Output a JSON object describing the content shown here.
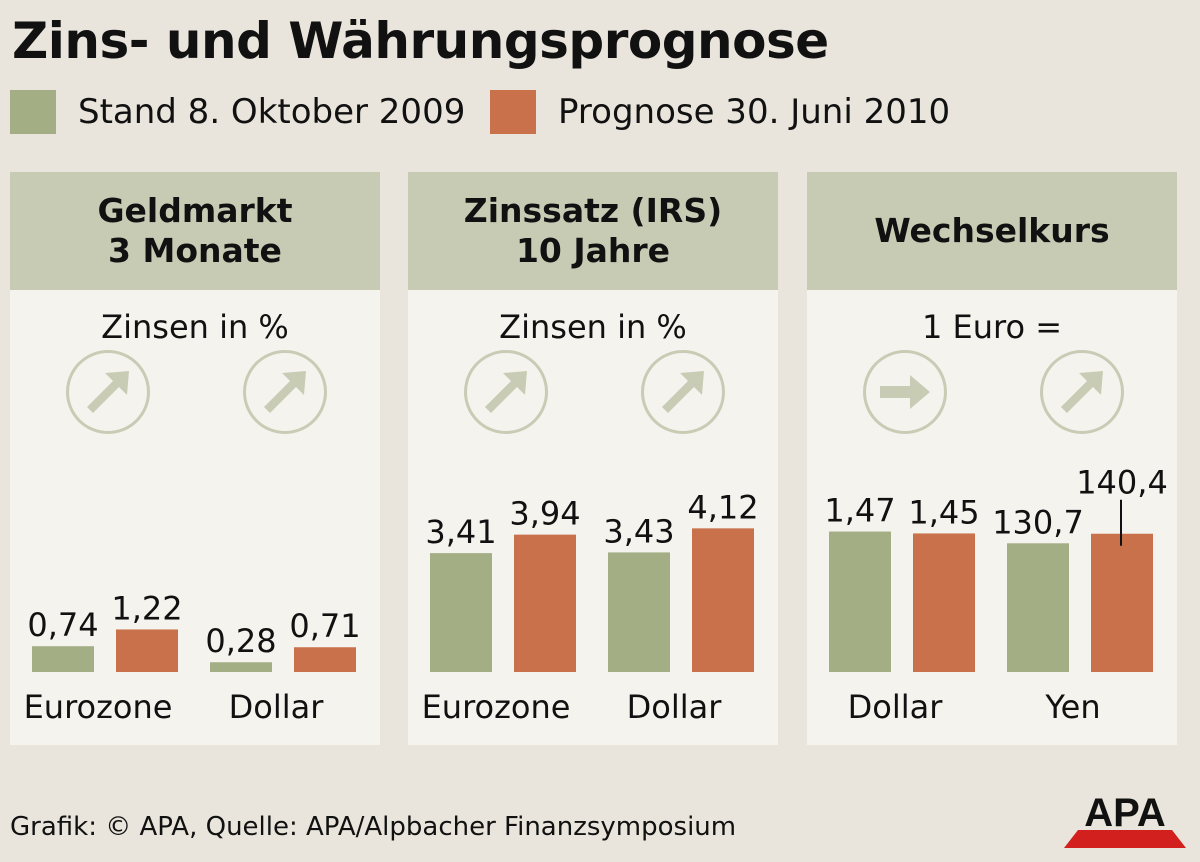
{
  "title": "Zins- und Währungsprognose",
  "legend": [
    {
      "label": "Stand 8. Oktober 2009",
      "color": "#a3ae85"
    },
    {
      "label": "Prognose 30. Juni 2010",
      "color": "#c9714a"
    }
  ],
  "colors": {
    "stand": "#a3ae85",
    "prognose": "#c9714a",
    "header": "#c8cbb4",
    "arrow": "#c9ccb5"
  },
  "chart_data": [
    {
      "type": "bar",
      "title": "Geldmarkt\n3 Monate",
      "title_lines": [
        "Geldmarkt",
        "3 Monate"
      ],
      "subtitle": "Zinsen in %",
      "categories": [
        "Eurozone",
        "Dollar"
      ],
      "series": [
        {
          "name": "Stand 8. Oktober 2009",
          "values": [
            0.74,
            0.28
          ],
          "labels": [
            "0,74",
            "0,28"
          ]
        },
        {
          "name": "Prognose 30. Juni 2010",
          "values": [
            1.22,
            0.71
          ],
          "labels": [
            "1,22",
            "0,71"
          ]
        }
      ],
      "trend_icons": [
        "arrow-up-right-icon",
        "arrow-up-right-icon"
      ],
      "scale_max": 7.4
    },
    {
      "type": "bar",
      "title": "Zinssatz (IRS)\n10 Jahre",
      "title_lines": [
        "Zinssatz (IRS)",
        "10 Jahre"
      ],
      "subtitle": "Zinsen in %",
      "categories": [
        "Eurozone",
        "Dollar"
      ],
      "series": [
        {
          "name": "Stand 8. Oktober 2009",
          "values": [
            3.41,
            3.43
          ],
          "labels": [
            "3,41",
            "3,43"
          ]
        },
        {
          "name": "Prognose 30. Juni 2010",
          "values": [
            3.94,
            4.12
          ],
          "labels": [
            "3,94",
            "4,12"
          ]
        }
      ],
      "trend_icons": [
        "arrow-up-right-icon",
        "arrow-up-right-icon"
      ],
      "scale_max": 7.4
    },
    {
      "type": "bar",
      "title": "Wechselkurs",
      "title_lines": [
        "Wechselkurs"
      ],
      "subtitle": "1 Euro =",
      "categories": [
        "Dollar",
        "Yen"
      ],
      "series": [
        {
          "name": "Stand 8. Oktober 2009",
          "values": [
            1.47,
            130.7
          ],
          "labels": [
            "1,47",
            "130,7"
          ]
        },
        {
          "name": "Prognose 30. Juni 2010",
          "values": [
            1.45,
            140.4
          ],
          "labels": [
            "1,45",
            "140,4"
          ]
        }
      ],
      "trend_icons": [
        "arrow-right-icon",
        "arrow-up-right-icon"
      ],
      "scale_max_per_category": [
        2.7,
        262
      ]
    }
  ],
  "footer": "Grafik: © APA, Quelle: APA/Alpbacher Finanzsymposium",
  "logo_text": "APA"
}
